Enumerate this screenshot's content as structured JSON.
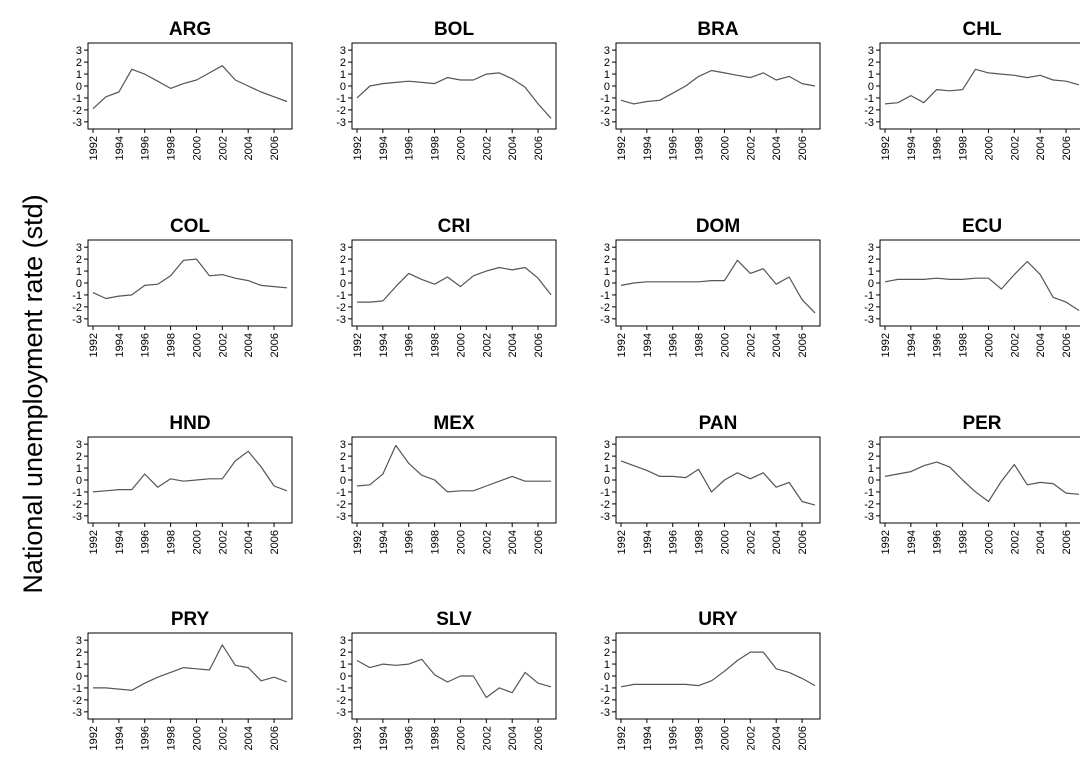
{
  "figure": {
    "ylabel": "National unemployment rate (std)"
  },
  "chart_data": [
    {
      "type": "line",
      "title": "ARG",
      "x": [
        1992,
        1993,
        1994,
        1995,
        1996,
        1997,
        1998,
        1999,
        2000,
        2001,
        2002,
        2003,
        2004,
        2005,
        2006,
        2007
      ],
      "series": [
        {
          "values": [
            -1.9,
            -0.9,
            -0.5,
            1.4,
            1.0,
            0.4,
            -0.2,
            0.2,
            0.5,
            1.1,
            1.7,
            0.5,
            0.0,
            -0.5,
            -0.9,
            -1.3
          ]
        }
      ],
      "ylim": [
        -3.6,
        3.6
      ],
      "yticks": [
        "3",
        "2",
        "1",
        "0",
        "-1",
        "-2",
        "-3"
      ],
      "xticks": [
        "1992",
        "1994",
        "1996",
        "1998",
        "2000",
        "2002",
        "2004",
        "2006"
      ]
    },
    {
      "type": "line",
      "title": "BOL",
      "x": [
        1992,
        1993,
        1994,
        1995,
        1996,
        1997,
        1998,
        1999,
        2000,
        2001,
        2002,
        2003,
        2004,
        2005,
        2006,
        2007
      ],
      "series": [
        {
          "values": [
            -1.0,
            0.0,
            0.2,
            0.3,
            0.4,
            0.3,
            0.2,
            0.7,
            0.5,
            0.5,
            1.0,
            1.1,
            0.6,
            -0.1,
            -1.5,
            -2.7
          ]
        }
      ],
      "ylim": [
        -3.6,
        3.6
      ],
      "yticks": [
        "3",
        "2",
        "1",
        "0",
        "-1",
        "-2",
        "-3"
      ],
      "xticks": [
        "1992",
        "1994",
        "1996",
        "1998",
        "2000",
        "2002",
        "2004",
        "2006"
      ]
    },
    {
      "type": "line",
      "title": "BRA",
      "x": [
        1992,
        1993,
        1994,
        1995,
        1996,
        1997,
        1998,
        1999,
        2000,
        2001,
        2002,
        2003,
        2004,
        2005,
        2006,
        2007
      ],
      "series": [
        {
          "values": [
            -1.2,
            -1.5,
            -1.3,
            -1.2,
            -0.6,
            0.0,
            0.8,
            1.3,
            1.1,
            0.9,
            0.7,
            1.1,
            0.5,
            0.8,
            0.2,
            0.0
          ]
        }
      ],
      "ylim": [
        -3.6,
        3.6
      ],
      "yticks": [
        "3",
        "2",
        "1",
        "0",
        "-1",
        "-2",
        "-3"
      ],
      "xticks": [
        "1992",
        "1994",
        "1996",
        "1998",
        "2000",
        "2002",
        "2004",
        "2006"
      ]
    },
    {
      "type": "line",
      "title": "CHL",
      "x": [
        1992,
        1993,
        1994,
        1995,
        1996,
        1997,
        1998,
        1999,
        2000,
        2001,
        2002,
        2003,
        2004,
        2005,
        2006,
        2007
      ],
      "series": [
        {
          "values": [
            -1.5,
            -1.4,
            -0.8,
            -1.4,
            -0.3,
            -0.4,
            -0.3,
            1.4,
            1.1,
            1.0,
            0.9,
            0.7,
            0.9,
            0.5,
            0.4,
            0.1
          ]
        }
      ],
      "ylim": [
        -3.6,
        3.6
      ],
      "yticks": [
        "3",
        "2",
        "1",
        "0",
        "-1",
        "-2",
        "-3"
      ],
      "xticks": [
        "1992",
        "1994",
        "1996",
        "1998",
        "2000",
        "2002",
        "2004",
        "2006"
      ]
    },
    {
      "type": "line",
      "title": "COL",
      "x": [
        1992,
        1993,
        1994,
        1995,
        1996,
        1997,
        1998,
        1999,
        2000,
        2001,
        2002,
        2003,
        2004,
        2005,
        2006,
        2007
      ],
      "series": [
        {
          "values": [
            -0.8,
            -1.3,
            -1.1,
            -1.0,
            -0.2,
            -0.1,
            0.6,
            1.9,
            2.0,
            0.6,
            0.7,
            0.4,
            0.2,
            -0.2,
            -0.3,
            -0.4
          ]
        }
      ],
      "ylim": [
        -3.6,
        3.6
      ],
      "yticks": [
        "3",
        "2",
        "1",
        "0",
        "-1",
        "-2",
        "-3"
      ],
      "xticks": [
        "1992",
        "1994",
        "1996",
        "1998",
        "2000",
        "2002",
        "2004",
        "2006"
      ]
    },
    {
      "type": "line",
      "title": "CRI",
      "x": [
        1992,
        1993,
        1994,
        1995,
        1996,
        1997,
        1998,
        1999,
        2000,
        2001,
        2002,
        2003,
        2004,
        2005,
        2006,
        2007
      ],
      "series": [
        {
          "values": [
            -1.6,
            -1.6,
            -1.5,
            -0.3,
            0.8,
            0.3,
            -0.1,
            0.5,
            -0.3,
            0.6,
            1.0,
            1.3,
            1.1,
            1.3,
            0.4,
            -1.0
          ]
        }
      ],
      "ylim": [
        -3.6,
        3.6
      ],
      "yticks": [
        "3",
        "2",
        "1",
        "0",
        "-1",
        "-2",
        "-3"
      ],
      "xticks": [
        "1992",
        "1994",
        "1996",
        "1998",
        "2000",
        "2002",
        "2004",
        "2006"
      ]
    },
    {
      "type": "line",
      "title": "DOM",
      "x": [
        1992,
        1993,
        1994,
        1995,
        1996,
        1997,
        1998,
        1999,
        2000,
        2001,
        2002,
        2003,
        2004,
        2005,
        2006,
        2007
      ],
      "series": [
        {
          "values": [
            -0.2,
            0.0,
            0.1,
            0.1,
            0.1,
            0.1,
            0.1,
            0.2,
            0.2,
            1.9,
            0.8,
            1.2,
            -0.1,
            0.5,
            -1.4,
            -2.5
          ]
        }
      ],
      "ylim": [
        -3.6,
        3.6
      ],
      "yticks": [
        "3",
        "2",
        "1",
        "0",
        "-1",
        "-2",
        "-3"
      ],
      "xticks": [
        "1992",
        "1994",
        "1996",
        "1998",
        "2000",
        "2002",
        "2004",
        "2006"
      ]
    },
    {
      "type": "line",
      "title": "ECU",
      "x": [
        1992,
        1993,
        1994,
        1995,
        1996,
        1997,
        1998,
        1999,
        2000,
        2001,
        2002,
        2003,
        2004,
        2005,
        2006,
        2007
      ],
      "series": [
        {
          "values": [
            0.1,
            0.3,
            0.3,
            0.3,
            0.4,
            0.3,
            0.3,
            0.4,
            0.4,
            -0.5,
            0.7,
            1.8,
            0.7,
            -1.2,
            -1.6,
            -2.3
          ]
        }
      ],
      "ylim": [
        -3.6,
        3.6
      ],
      "yticks": [
        "3",
        "2",
        "1",
        "0",
        "-1",
        "-2",
        "-3"
      ],
      "xticks": [
        "1992",
        "1994",
        "1996",
        "1998",
        "2000",
        "2002",
        "2004",
        "2006"
      ]
    },
    {
      "type": "line",
      "title": "HND",
      "x": [
        1992,
        1993,
        1994,
        1995,
        1996,
        1997,
        1998,
        1999,
        2000,
        2001,
        2002,
        2003,
        2004,
        2005,
        2006,
        2007
      ],
      "series": [
        {
          "values": [
            -1.0,
            -0.9,
            -0.8,
            -0.8,
            0.5,
            -0.6,
            0.1,
            -0.1,
            0.0,
            0.1,
            0.1,
            1.6,
            2.4,
            1.1,
            -0.5,
            -0.9
          ]
        }
      ],
      "ylim": [
        -3.6,
        3.6
      ],
      "yticks": [
        "3",
        "2",
        "1",
        "0",
        "-1",
        "-2",
        "-3"
      ],
      "xticks": [
        "1992",
        "1994",
        "1996",
        "1998",
        "2000",
        "2002",
        "2004",
        "2006"
      ]
    },
    {
      "type": "line",
      "title": "MEX",
      "x": [
        1992,
        1993,
        1994,
        1995,
        1996,
        1997,
        1998,
        1999,
        2000,
        2001,
        2002,
        2003,
        2004,
        2005,
        2006,
        2007
      ],
      "series": [
        {
          "values": [
            -0.5,
            -0.4,
            0.5,
            2.9,
            1.4,
            0.4,
            0.0,
            -1.0,
            -0.9,
            -0.9,
            -0.5,
            -0.1,
            0.3,
            -0.1,
            -0.1,
            -0.1
          ]
        }
      ],
      "ylim": [
        -3.6,
        3.6
      ],
      "yticks": [
        "3",
        "2",
        "1",
        "0",
        "-1",
        "-2",
        "-3"
      ],
      "xticks": [
        "1992",
        "1994",
        "1996",
        "1998",
        "2000",
        "2002",
        "2004",
        "2006"
      ]
    },
    {
      "type": "line",
      "title": "PAN",
      "x": [
        1992,
        1993,
        1994,
        1995,
        1996,
        1997,
        1998,
        1999,
        2000,
        2001,
        2002,
        2003,
        2004,
        2005,
        2006,
        2007
      ],
      "series": [
        {
          "values": [
            1.6,
            1.2,
            0.8,
            0.3,
            0.3,
            0.2,
            0.9,
            -1.0,
            0.0,
            0.6,
            0.1,
            0.6,
            -0.6,
            -0.2,
            -1.8,
            -2.1
          ]
        }
      ],
      "ylim": [
        -3.6,
        3.6
      ],
      "yticks": [
        "3",
        "2",
        "1",
        "0",
        "-1",
        "-2",
        "-3"
      ],
      "xticks": [
        "1992",
        "1994",
        "1996",
        "1998",
        "2000",
        "2002",
        "2004",
        "2006"
      ]
    },
    {
      "type": "line",
      "title": "PER",
      "x": [
        1992,
        1993,
        1994,
        1995,
        1996,
        1997,
        1998,
        1999,
        2000,
        2001,
        2002,
        2003,
        2004,
        2005,
        2006,
        2007
      ],
      "series": [
        {
          "values": [
            0.3,
            0.5,
            0.7,
            1.2,
            1.5,
            1.1,
            0.0,
            -1.0,
            -1.8,
            -0.1,
            1.3,
            -0.4,
            -0.2,
            -0.3,
            -1.1,
            -1.2
          ]
        }
      ],
      "ylim": [
        -3.6,
        3.6
      ],
      "yticks": [
        "3",
        "2",
        "1",
        "0",
        "-1",
        "-2",
        "-3"
      ],
      "xticks": [
        "1992",
        "1994",
        "1996",
        "1998",
        "2000",
        "2002",
        "2004",
        "2006"
      ]
    },
    {
      "type": "line",
      "title": "PRY",
      "x": [
        1992,
        1993,
        1994,
        1995,
        1996,
        1997,
        1998,
        1999,
        2000,
        2001,
        2002,
        2003,
        2004,
        2005,
        2006,
        2007
      ],
      "series": [
        {
          "values": [
            -1.0,
            -1.0,
            -1.1,
            -1.2,
            -0.6,
            -0.1,
            0.3,
            0.7,
            0.6,
            0.5,
            2.6,
            0.9,
            0.7,
            -0.4,
            -0.1,
            -0.5
          ]
        }
      ],
      "ylim": [
        -3.6,
        3.6
      ],
      "yticks": [
        "3",
        "2",
        "1",
        "0",
        "-1",
        "-2",
        "-3"
      ],
      "xticks": [
        "1992",
        "1994",
        "1996",
        "1998",
        "2000",
        "2002",
        "2004",
        "2006"
      ]
    },
    {
      "type": "line",
      "title": "SLV",
      "x": [
        1992,
        1993,
        1994,
        1995,
        1996,
        1997,
        1998,
        1999,
        2000,
        2001,
        2002,
        2003,
        2004,
        2005,
        2006,
        2007
      ],
      "series": [
        {
          "values": [
            1.3,
            0.7,
            1.0,
            0.9,
            1.0,
            1.4,
            0.1,
            -0.5,
            0.0,
            0.0,
            -1.8,
            -1.0,
            -1.4,
            0.3,
            -0.6,
            -0.9
          ]
        }
      ],
      "ylim": [
        -3.6,
        3.6
      ],
      "yticks": [
        "3",
        "2",
        "1",
        "0",
        "-1",
        "-2",
        "-3"
      ],
      "xticks": [
        "1992",
        "1994",
        "1996",
        "1998",
        "2000",
        "2002",
        "2004",
        "2006"
      ]
    },
    {
      "type": "line",
      "title": "URY",
      "x": [
        1992,
        1993,
        1994,
        1995,
        1996,
        1997,
        1998,
        1999,
        2000,
        2001,
        2002,
        2003,
        2004,
        2005,
        2006,
        2007
      ],
      "series": [
        {
          "values": [
            -0.9,
            -0.7,
            -0.7,
            -0.7,
            -0.7,
            -0.7,
            -0.8,
            -0.4,
            0.4,
            1.3,
            2.0,
            2.0,
            0.6,
            0.3,
            -0.2,
            -0.8
          ]
        }
      ],
      "ylim": [
        -3.6,
        3.6
      ],
      "yticks": [
        "3",
        "2",
        "1",
        "0",
        "-1",
        "-2",
        "-3"
      ],
      "xticks": [
        "1992",
        "1994",
        "1996",
        "1998",
        "2000",
        "2002",
        "2004",
        "2006"
      ]
    }
  ]
}
